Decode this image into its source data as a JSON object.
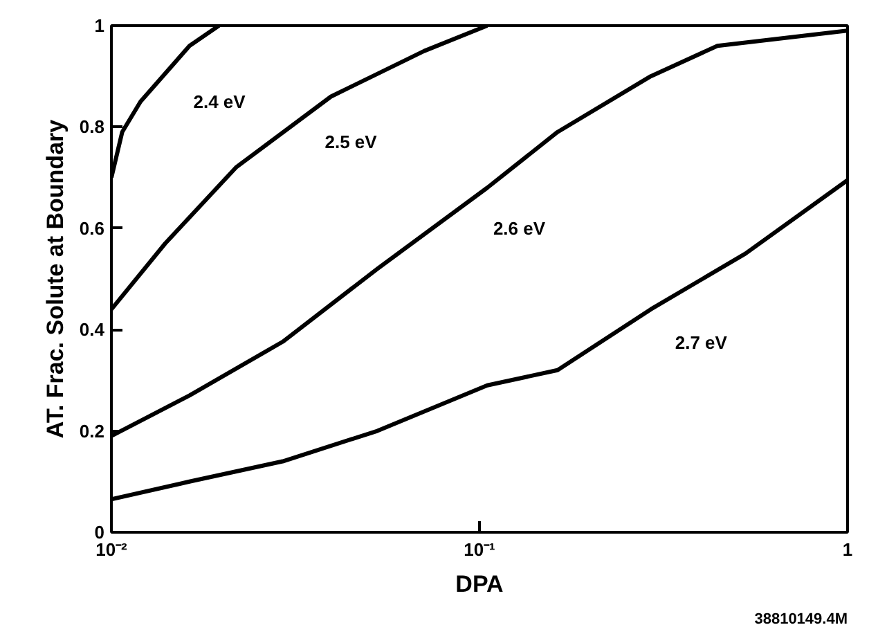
{
  "chart_data": {
    "type": "line",
    "xlabel": "DPA",
    "ylabel": "AT. Frac. Solute at Boundary",
    "log": "x",
    "xlim": [
      0.01,
      1
    ],
    "ylim": [
      0,
      1
    ],
    "xticks": [
      {
        "value": 0.01,
        "label": "10⁻²"
      },
      {
        "value": 0.1,
        "label": "10⁻¹"
      },
      1
    ],
    "yticks": [
      0,
      0.2,
      0.4,
      0.6,
      0.8,
      1
    ],
    "grid": false,
    "marker": "none",
    "line_style": "solid",
    "series": [
      {
        "name": "2.4 eV",
        "color": "#000000",
        "x": [
          0.01,
          0.0107,
          0.012,
          0.0163,
          0.0196
        ],
        "values": [
          0.7,
          0.79,
          0.85,
          0.96,
          1.0
        ]
      },
      {
        "name": "2.5 eV",
        "color": "#000000",
        "x": [
          0.01,
          0.014,
          0.0218,
          0.0395,
          0.0708,
          0.105
        ],
        "values": [
          0.44,
          0.57,
          0.72,
          0.86,
          0.95,
          1.0
        ]
      },
      {
        "name": "2.6 eV",
        "color": "#000000",
        "x": [
          0.01,
          0.0163,
          0.0292,
          0.0528,
          0.105,
          0.163,
          0.292,
          0.443,
          1
        ],
        "values": [
          0.19,
          0.27,
          0.376,
          0.52,
          0.68,
          0.79,
          0.9,
          0.96,
          0.99
        ]
      },
      {
        "name": "2.7 eV",
        "color": "#000000",
        "x": [
          0.01,
          0.0163,
          0.0292,
          0.0528,
          0.105,
          0.163,
          0.292,
          0.528,
          1
        ],
        "values": [
          0.065,
          0.1,
          0.14,
          0.2,
          0.29,
          0.32,
          0.44,
          0.55,
          0.695
        ]
      }
    ],
    "annotations": [
      "38810149.4M"
    ]
  }
}
